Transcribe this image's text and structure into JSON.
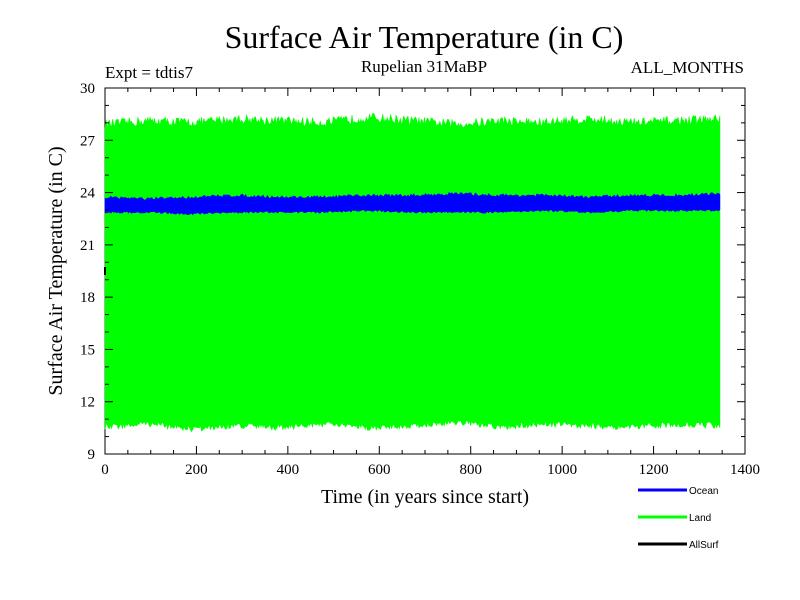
{
  "chart_data": {
    "type": "line",
    "title": "Surface Air Temperature (in C)",
    "subtitle": "Rupelian  31MaBP",
    "experiment": "Expt = tdtis7",
    "months_label": "ALL_MONTHS",
    "xlabel": "Time (in years since start)",
    "ylabel": "Surface Air Temperature (in C)",
    "xlim": [
      0,
      1400
    ],
    "ylim": [
      9,
      30
    ],
    "x_ticks": [
      0,
      200,
      400,
      600,
      800,
      1000,
      1200,
      1400
    ],
    "y_ticks": [
      9,
      12,
      15,
      18,
      21,
      24,
      27,
      30
    ],
    "x_data_range": [
      0,
      1345
    ],
    "series": [
      {
        "name": "Land",
        "color": "#00ff00",
        "mean": 19.2,
        "upper_envelope": [
          27.8,
          28.0,
          27.9,
          28.1,
          28.0,
          27.9,
          28.2,
          28.0,
          27.8,
          28.0,
          27.9,
          28.1,
          27.9,
          28.0,
          28.1
        ],
        "lower_envelope": [
          10.6,
          10.8,
          10.5,
          10.7,
          10.6,
          10.8,
          10.6,
          10.7,
          10.9,
          10.6,
          10.8,
          10.7,
          10.6,
          10.8,
          10.7
        ]
      },
      {
        "name": "Ocean",
        "color": "#0000ff",
        "mean": 23.3,
        "upper_envelope": [
          23.7,
          23.6,
          23.7,
          23.8,
          23.7,
          23.7,
          23.8,
          23.8,
          23.9,
          23.8,
          23.8,
          23.7,
          23.8,
          23.8,
          23.9
        ],
        "lower_envelope": [
          22.9,
          22.9,
          22.8,
          22.9,
          22.9,
          22.9,
          23.0,
          22.9,
          22.9,
          22.9,
          23.0,
          22.9,
          23.0,
          23.0,
          23.0
        ]
      },
      {
        "name": "AllSurf",
        "color": "#000000",
        "mean": 19.5,
        "upper_envelope": [],
        "lower_envelope": []
      }
    ],
    "legend": [
      "Ocean",
      "Land",
      "AllSurf"
    ],
    "legend_position": "bottom-right"
  }
}
